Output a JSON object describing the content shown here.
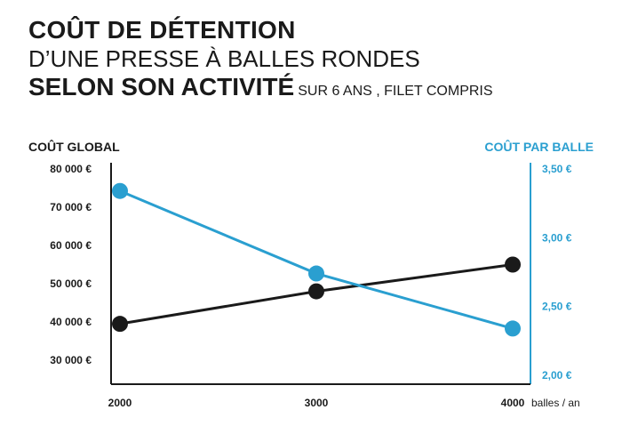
{
  "title": {
    "line1": "COÛT DE DÉTENTION",
    "line2": "D’UNE PRESSE À BALLES RONDES",
    "line3": "SELON SON ACTIVITÉ",
    "line3_note": "SUR 6 ANS , FILET COMPRIS"
  },
  "colors": {
    "global": "#1a1a1a",
    "per_bale": "#2a9fd0"
  },
  "chart_data": {
    "type": "line",
    "title": "COÛT DE DÉTENTION D’UNE PRESSE À BALLES RONDES SELON SON ACTIVITÉ SUR 6 ANS , FILET COMPRIS",
    "x": [
      2000,
      3000,
      4000
    ],
    "x_tick_labels": [
      "2000",
      "3000",
      "4000"
    ],
    "x_unit": "balles / an",
    "y_left": {
      "label": "COÛT GLOBAL",
      "ticks": [
        "80 000 €",
        "70 000 €",
        "60 000 €",
        "50 000 €",
        "40 000 €",
        "30 000 €"
      ],
      "tick_values": [
        80000,
        70000,
        60000,
        50000,
        40000,
        30000
      ],
      "range": [
        25000,
        82000
      ]
    },
    "y_right": {
      "label": "COÛT PAR BALLE",
      "ticks": [
        "3,50 €",
        "3,00 €",
        "2,50 €",
        "2,00 €"
      ],
      "tick_values": [
        3.5,
        3.0,
        2.5,
        2.0
      ],
      "range": [
        2.0,
        3.5
      ]
    },
    "series": [
      {
        "name": "COÛT GLOBAL",
        "axis": "left",
        "color": "#1a1a1a",
        "values": [
          39500,
          48000,
          55000
        ]
      },
      {
        "name": "COÛT PAR BALLE",
        "axis": "right",
        "color": "#2a9fd0",
        "values": [
          3.34,
          2.74,
          2.34
        ]
      }
    ],
    "grid": false,
    "legend": "none"
  }
}
